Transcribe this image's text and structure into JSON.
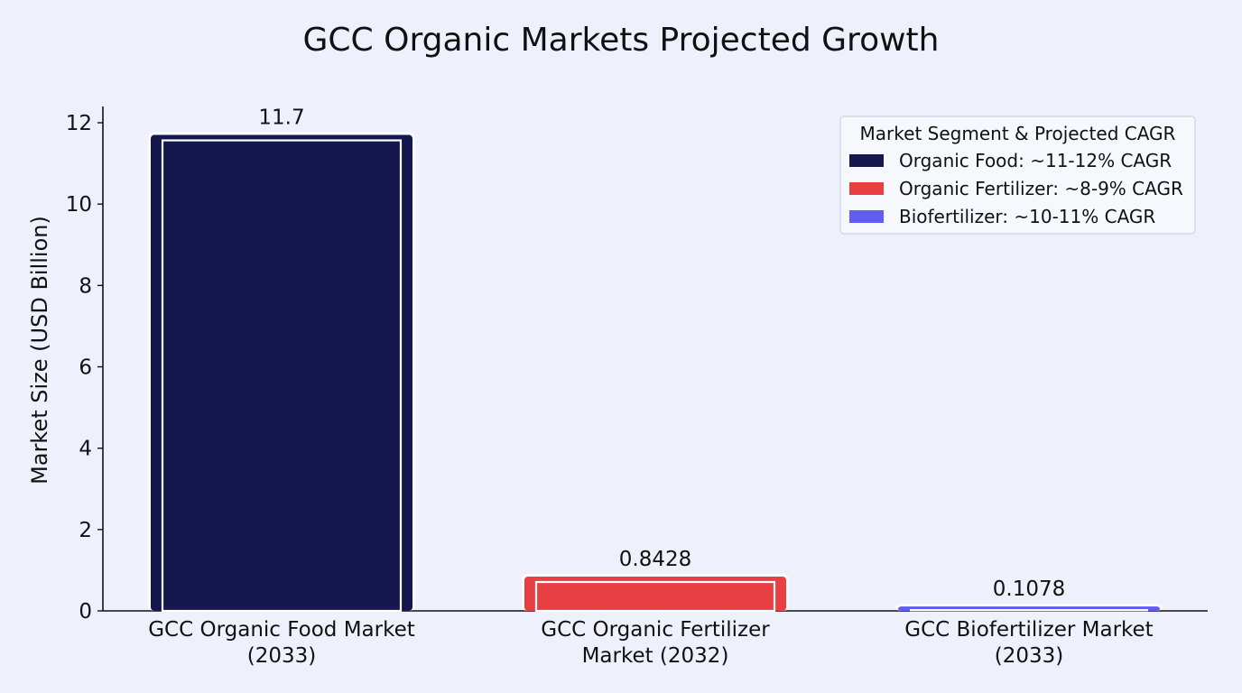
{
  "chart_data": {
    "type": "bar",
    "title": "GCC Organic Markets Projected Growth",
    "xlabel": "",
    "ylabel": "Market Size (USD Billion)",
    "ylim": [
      0,
      12.4
    ],
    "yticks": [
      0,
      2,
      4,
      6,
      8,
      10,
      12
    ],
    "categories": [
      [
        "GCC Organic Food Market",
        "(2033)"
      ],
      [
        "GCC Organic Fertilizer",
        "Market (2032)"
      ],
      [
        "GCC Biofertilizer Market",
        "(2033)"
      ]
    ],
    "values": [
      11.7,
      0.8428,
      0.1078
    ],
    "value_labels": [
      "11.7",
      "0.8428",
      "0.1078"
    ],
    "colors": [
      "#15174f",
      "#e84042",
      "#5f5ef0"
    ],
    "grid": false,
    "legend": {
      "title": "Market Segment & Projected CAGR",
      "placement": "top-right",
      "entries": [
        {
          "label": "Organic Food: ~11-12% CAGR",
          "color": "#15174f"
        },
        {
          "label": "Organic Fertilizer: ~8-9% CAGR",
          "color": "#e84042"
        },
        {
          "label": "Biofertilizer: ~10-11% CAGR",
          "color": "#5f5ef0"
        }
      ]
    }
  }
}
